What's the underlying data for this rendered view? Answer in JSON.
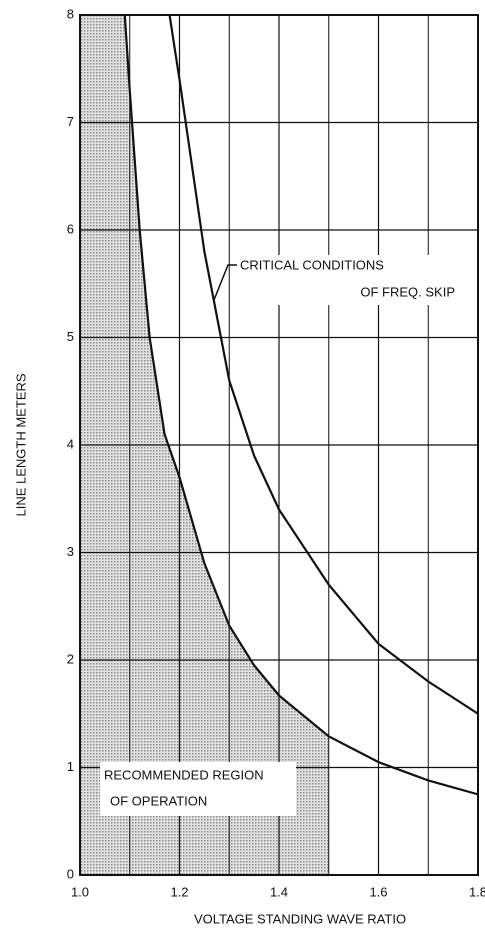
{
  "chart_data": {
    "type": "line",
    "xlabel": "VOLTAGE STANDING WAVE RATIO",
    "ylabel": "LINE LENGTH METERS",
    "series": [
      {
        "color": "#111111",
        "x": [
          1.09,
          1.1,
          1.12,
          1.14,
          1.17,
          1.2,
          1.25,
          1.3,
          1.35,
          1.4,
          1.5,
          1.6,
          1.7,
          1.8
        ],
        "values": [
          8,
          7.3,
          6,
          5,
          4.1,
          3.7,
          2.9,
          2.32,
          1.95,
          1.67,
          1.29,
          1.05,
          0.88,
          0.75
        ]
      },
      {
        "color": "#111111",
        "x": [
          1.18,
          1.2,
          1.25,
          1.3,
          1.35,
          1.4,
          1.5,
          1.6,
          1.7,
          1.8
        ],
        "values": [
          8,
          7.4,
          5.8,
          4.6,
          3.9,
          3.4,
          2.7,
          2.15,
          1.8,
          1.5
        ]
      }
    ],
    "region_xlim": [
      1.0,
      1.5
    ],
    "region_color": "#c4c4c4",
    "annotations": [
      {
        "lines": [
          "CRITICAL CONDITIONS",
          "OF FREQ. SKIP"
        ]
      },
      {
        "lines": [
          "RECOMMENDED REGION",
          "OF OPERATION"
        ]
      }
    ],
    "xlim": [
      1.0,
      1.8
    ],
    "xticks": [
      {
        "value": 1.0,
        "label": "1.0"
      },
      1.2,
      1.4,
      1.6,
      1.8
    ],
    "xgrid_minor": [
      1.1,
      1.3,
      1.5,
      1.7
    ],
    "ylim": [
      0,
      8
    ],
    "yticks": [
      0,
      1,
      2,
      3,
      4,
      5,
      6,
      7,
      8
    ],
    "grid": true
  }
}
